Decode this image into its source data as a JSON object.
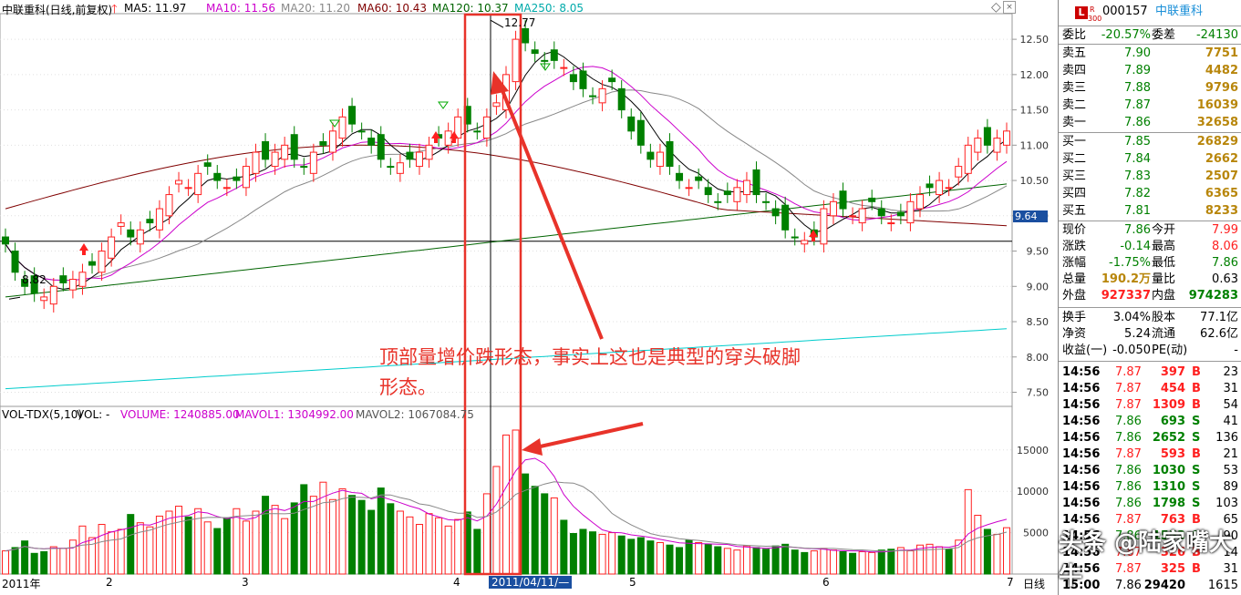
{
  "ma_bar": {
    "title": "中联重科(日线,前复权)",
    "ma5": "MA5: 11.97",
    "ma10": "MA10: 11.56",
    "ma20": "MA20: 11.20",
    "ma60": "MA60: 10.43",
    "ma120": "MA120: 10.37",
    "ma250": "MA250: 8.05"
  },
  "price_labels": {
    "high": "12.77",
    "low": "8.82",
    "cursor_price": "9.64"
  },
  "vol_bar": {
    "title": "VOL-TDX(5,10)",
    "vol": "VOL: -",
    "volume": "VOLUME: 1240885.00",
    "mavol1": "MAVOL1: 1304992.00",
    "mavol2": "MAVOL2: 1067084.75"
  },
  "x_axis": {
    "year": "2011年",
    "m2": "2",
    "m3": "3",
    "m4": "4",
    "m5": "5",
    "m6": "6",
    "m7": "7",
    "cursor_date": "2011/04/11/—",
    "period": "日线"
  },
  "annotation": {
    "line1": "顶部量增价跌形态，事实上这也是典型的穿头破脚",
    "line2": "形态。"
  },
  "watermark": "头条 @陆家嘴大牛",
  "colors": {
    "up": "#ff2020",
    "down": "#008000",
    "ma5": "#000000",
    "ma10": "#cc00cc",
    "ma20": "#888888",
    "ma60": "#800000",
    "ma120": "#006400",
    "ma250": "#00cccc",
    "annotation": "#e8332a"
  },
  "chart_data": [
    {
      "type": "candlestick",
      "title": "中联重科(日线,前复权)",
      "y_ticks": [
        7.5,
        8.0,
        8.5,
        9.0,
        9.5,
        10.0,
        10.5,
        11.0,
        11.5,
        12.0,
        12.5
      ],
      "ylim": [
        7.3,
        12.85
      ],
      "x_ticks": [
        "2011年",
        "2",
        "3",
        "4",
        "5",
        "6",
        "7"
      ],
      "highest": 12.77,
      "lowest": 8.82,
      "reference_line": 9.64,
      "series": [
        {
          "name": "MA5",
          "last": 11.97
        },
        {
          "name": "MA10",
          "last": 11.56
        },
        {
          "name": "MA20",
          "last": 11.2
        },
        {
          "name": "MA60",
          "last": 10.43
        },
        {
          "name": "MA120",
          "last": 10.37
        },
        {
          "name": "MA250",
          "last": 8.05
        }
      ],
      "closes": [
        9.6,
        9.2,
        9.0,
        8.9,
        8.85,
        9.0,
        9.05,
        9.1,
        9.2,
        9.3,
        9.5,
        9.7,
        9.9,
        9.7,
        9.8,
        9.9,
        10.1,
        10.3,
        10.5,
        10.4,
        10.6,
        10.7,
        10.5,
        10.4,
        10.5,
        10.7,
        10.9,
        10.8,
        10.9,
        11.0,
        10.8,
        10.7,
        10.9,
        11.0,
        11.2,
        11.4,
        11.3,
        11.2,
        11.0,
        10.8,
        10.7,
        10.75,
        10.8,
        10.9,
        11.0,
        11.1,
        11.2,
        11.4,
        11.3,
        11.2,
        11.4,
        11.6,
        12.0,
        12.5,
        12.45,
        12.3,
        12.2,
        12.2,
        12.1,
        11.9,
        11.8,
        11.7,
        11.8,
        11.9,
        11.5,
        11.2,
        11.0,
        10.8,
        10.9,
        10.7,
        10.5,
        10.4,
        10.5,
        10.3,
        10.2,
        10.3,
        10.4,
        10.5,
        10.3,
        10.2,
        10.0,
        9.8,
        9.7,
        9.65,
        9.7,
        10.1,
        10.2,
        10.1,
        10.0,
        10.1,
        10.2,
        10.0,
        9.9,
        10.0,
        10.2,
        10.3,
        10.4,
        10.5,
        10.4,
        10.7,
        11.0,
        11.1,
        11.0,
        11.1,
        11.2
      ]
    },
    {
      "type": "bar",
      "title": "VOL-TDX(5,10)",
      "y_ticks": [
        5000,
        10000,
        15000
      ],
      "series": [
        {
          "name": "VOLUME",
          "last": 1240885.0
        },
        {
          "name": "MAVOL1",
          "last": 1304992.0
        },
        {
          "name": "MAVOL2",
          "last": 1067084.75
        }
      ],
      "values": [
        2800,
        3200,
        4000,
        2500,
        2700,
        3300,
        3100,
        4100,
        5800,
        4400,
        6000,
        5100,
        5400,
        7200,
        6200,
        5700,
        7000,
        7600,
        8200,
        6900,
        7900,
        6300,
        5500,
        6800,
        7900,
        6400,
        7600,
        9400,
        8300,
        6700,
        8600,
        10800,
        9400,
        11100,
        9000,
        10300,
        9500,
        8900,
        7700,
        10400,
        8500,
        7600,
        6900,
        6000,
        7300,
        6800,
        5800,
        6600,
        7500,
        5400,
        9700,
        13000,
        16800,
        17400,
        12100,
        10600,
        9700,
        9200,
        6500,
        4900,
        5400,
        5100,
        4800,
        5000,
        4600,
        4200,
        4400,
        4000,
        3800,
        3500,
        3200,
        4100,
        3800,
        3600,
        3300,
        3100,
        2900,
        3400,
        3200,
        3000,
        3400,
        3600,
        2900,
        2600,
        2800,
        3100,
        2900,
        2700,
        2500,
        2700,
        2600,
        2900,
        3000,
        3200,
        2800,
        3500,
        3600,
        3300,
        3000,
        4100,
        10200,
        7100,
        5400,
        4800,
        5600
      ]
    },
    {
      "type": "table",
      "title": "000157 中联重科",
      "quote": {
        "委比": "-20.57%",
        "委差": "-24130",
        "现价": "7.86",
        "今开": "7.99",
        "涨跌": "-0.14",
        "最高": "8.06",
        "涨幅": "-1.75%",
        "最低": "7.86",
        "总量": "190.2万",
        "量比": "0.63",
        "外盘": "927337",
        "内盘": "974283",
        "换手": "3.04%",
        "股本": "77.1亿",
        "净资": "5.24",
        "流通": "62.6亿",
        "收益(一)": "-0.050",
        "PE(动)": "-"
      },
      "asks": [
        [
          "卖五",
          "7.90",
          "7751"
        ],
        [
          "卖四",
          "7.89",
          "4482"
        ],
        [
          "卖三",
          "7.88",
          "9796"
        ],
        [
          "卖二",
          "7.87",
          "16039"
        ],
        [
          "卖一",
          "7.86",
          "32658"
        ]
      ],
      "bids": [
        [
          "买一",
          "7.85",
          "26829"
        ],
        [
          "买二",
          "7.84",
          "2662"
        ],
        [
          "买三",
          "7.83",
          "2507"
        ],
        [
          "买四",
          "7.82",
          "6365"
        ],
        [
          "买五",
          "7.81",
          "8233"
        ]
      ]
    }
  ],
  "panel": {
    "code": "000157",
    "name": "中联重科",
    "badge_l": "L",
    "badge_r": "R",
    "badge_n": "300",
    "weibi_label": "委比",
    "weibi": "-20.57%",
    "weicha_label": "委差",
    "weicha": "-24130",
    "asks": [
      {
        "label": "卖五",
        "price": "7.90",
        "vol": "7751"
      },
      {
        "label": "卖四",
        "price": "7.89",
        "vol": "4482"
      },
      {
        "label": "卖三",
        "price": "7.88",
        "vol": "9796"
      },
      {
        "label": "卖二",
        "price": "7.87",
        "vol": "16039"
      },
      {
        "label": "卖一",
        "price": "7.86",
        "vol": "32658"
      }
    ],
    "bids": [
      {
        "label": "买一",
        "price": "7.85",
        "vol": "26829"
      },
      {
        "label": "买二",
        "price": "7.84",
        "vol": "2662"
      },
      {
        "label": "买三",
        "price": "7.83",
        "vol": "2507"
      },
      {
        "label": "买四",
        "price": "7.82",
        "vol": "6365"
      },
      {
        "label": "买五",
        "price": "7.81",
        "vol": "8233"
      }
    ],
    "stats": [
      {
        "l1": "现价",
        "v1": "7.86",
        "l2": "今开",
        "v2": "7.99"
      },
      {
        "l1": "涨跌",
        "v1": "-0.14",
        "l2": "最高",
        "v2": "8.06"
      },
      {
        "l1": "涨幅",
        "v1": "-1.75%",
        "l2": "最低",
        "v2": "7.86"
      },
      {
        "l1": "总量",
        "v1": "190.2万",
        "l2": "量比",
        "v2": "0.63"
      },
      {
        "l1": "外盘",
        "v1": "927337",
        "l2": "内盘",
        "v2": "974283"
      }
    ],
    "stats2": [
      {
        "l1": "换手",
        "v1": "3.04%",
        "l2": "股本",
        "v2": "77.1亿"
      },
      {
        "l1": "净资",
        "v1": "5.24",
        "l2": "流通",
        "v2": "62.6亿"
      },
      {
        "l1": "收益(一)",
        "v1": "-0.050",
        "l2": "PE(动)",
        "v2": "-"
      }
    ],
    "ticks": [
      {
        "t": "14:56",
        "p": "7.87",
        "v": "397",
        "s": "B",
        "n": "23"
      },
      {
        "t": "14:56",
        "p": "7.87",
        "v": "454",
        "s": "B",
        "n": "31"
      },
      {
        "t": "14:56",
        "p": "7.87",
        "v": "1309",
        "s": "B",
        "n": "54"
      },
      {
        "t": "14:56",
        "p": "7.86",
        "v": "693",
        "s": "S",
        "n": "41"
      },
      {
        "t": "14:56",
        "p": "7.86",
        "v": "2652",
        "s": "S",
        "n": "136"
      },
      {
        "t": "14:56",
        "p": "7.87",
        "v": "593",
        "s": "B",
        "n": "21"
      },
      {
        "t": "14:56",
        "p": "7.86",
        "v": "1030",
        "s": "S",
        "n": "53"
      },
      {
        "t": "14:56",
        "p": "7.86",
        "v": "1310",
        "s": "S",
        "n": "89"
      },
      {
        "t": "14:56",
        "p": "7.86",
        "v": "1798",
        "s": "S",
        "n": "103"
      },
      {
        "t": "14:56",
        "p": "7.87",
        "v": "763",
        "s": "B",
        "n": "65"
      },
      {
        "t": "14:56",
        "p": "7.86",
        "v": "1553",
        "s": "S",
        "n": "90"
      },
      {
        "t": "14:56",
        "p": "7.87",
        "v": "326",
        "s": "B",
        "n": "14"
      },
      {
        "t": "14:56",
        "p": "7.87",
        "v": "325",
        "s": "B",
        "n": "31"
      },
      {
        "t": "15:00",
        "p": "7.86",
        "v": "29420",
        "s": "",
        "n": "1615"
      }
    ]
  }
}
